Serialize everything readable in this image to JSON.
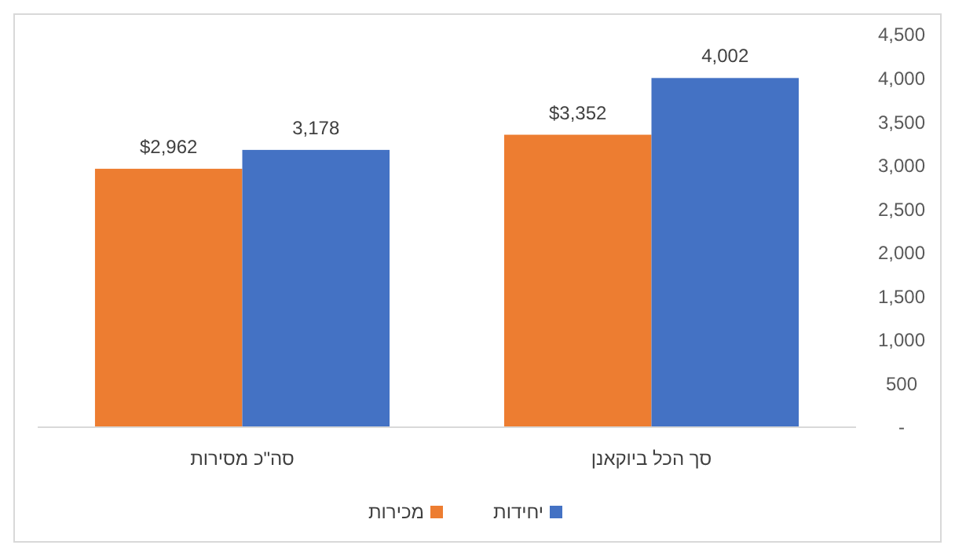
{
  "chart_data": {
    "type": "bar",
    "categories": [
      "סה\"כ מסירות",
      "סך הכל ביוקאנן"
    ],
    "series": [
      {
        "name": "מכירות",
        "color": "#ed7d31",
        "values": [
          2962,
          3352
        ],
        "value_labels": [
          "$2,962",
          "$3,352"
        ]
      },
      {
        "name": "יחידות",
        "color": "#4472c4",
        "values": [
          3178,
          4002
        ],
        "value_labels": [
          "3,178",
          "4,002"
        ]
      }
    ],
    "ylim": [
      0,
      4500
    ],
    "yticks": [
      {
        "value": 0,
        "label": "-"
      },
      500,
      {
        "value": 1000,
        "label": "1,000"
      },
      {
        "value": 1500,
        "label": "1,500"
      },
      {
        "value": 2000,
        "label": "2,000"
      },
      {
        "value": 2500,
        "label": "2,500"
      },
      {
        "value": 3000,
        "label": "3,000"
      },
      {
        "value": 3500,
        "label": "3,500"
      },
      {
        "value": 4000,
        "label": "4,000"
      },
      {
        "value": 4500,
        "label": "4,500"
      }
    ],
    "legend": "bottom"
  }
}
